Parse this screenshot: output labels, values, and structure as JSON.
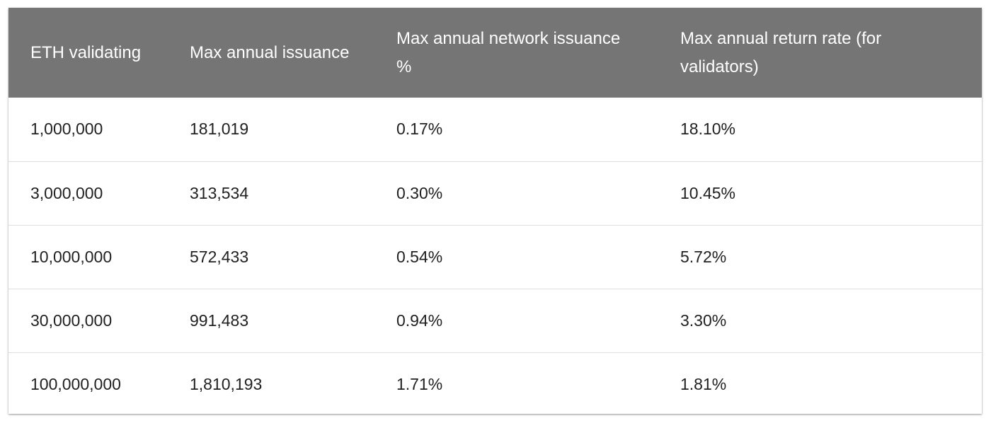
{
  "table": {
    "headers": [
      "ETH validating",
      "Max annual issuance",
      "Max annual network issuance %",
      "Max annual return rate (for validators)"
    ],
    "rows": [
      [
        "1,000,000",
        "181,019",
        "0.17%",
        "18.10%"
      ],
      [
        "3,000,000",
        "313,534",
        "0.30%",
        "10.45%"
      ],
      [
        "10,000,000",
        "572,433",
        "0.54%",
        "5.72%"
      ],
      [
        "30,000,000",
        "991,483",
        "0.94%",
        "3.30%"
      ],
      [
        "100,000,000",
        "1,810,193",
        "1.71%",
        "1.81%"
      ]
    ]
  },
  "colors": {
    "header_background": "#757575",
    "header_text": "#ffffff",
    "row_divider": "#e0e0e0",
    "cell_text": "#212121"
  }
}
